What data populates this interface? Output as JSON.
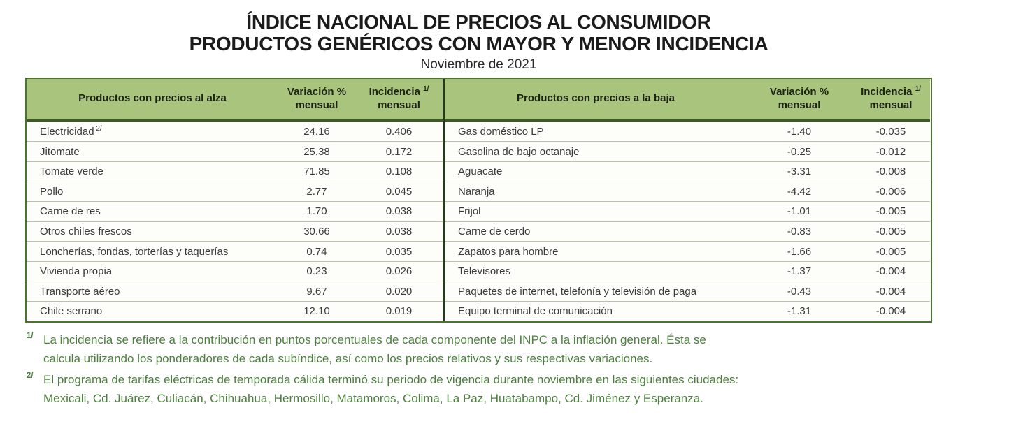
{
  "page": {
    "title_line1": "ÍNDICE NACIONAL DE PRECIOS AL CONSUMIDOR",
    "title_line2": "PRODUCTOS GENÉRICOS CON MAYOR Y MENOR INCIDENCIA",
    "subtitle": "Noviembre de 2021"
  },
  "colors": {
    "header_green": "#a9c47c",
    "border_dark_green": "#4a7233",
    "header_rule_green": "#3a5c24",
    "divider_green": "#27391d",
    "row_separator": "#b9c2aa",
    "footnote_green": "#4c7f3e",
    "body_text": "#3b3b3b"
  },
  "table": {
    "sections": [
      {
        "id": "alza",
        "header": {
          "product": "Productos con precios al alza",
          "variation_line1": "Variación %",
          "variation_line2": "mensual",
          "incidence_line1": "Incidencia",
          "incidence_sup": "1/",
          "incidence_line2": "mensual"
        },
        "rows": [
          {
            "product": "Electricidad",
            "product_sup": "2/",
            "variation": "24.16",
            "incidence": "0.406"
          },
          {
            "product": "Jitomate",
            "variation": "25.38",
            "incidence": "0.172"
          },
          {
            "product": "Tomate verde",
            "variation": "71.85",
            "incidence": "0.108"
          },
          {
            "product": "Pollo",
            "variation": "2.77",
            "incidence": "0.045"
          },
          {
            "product": "Carne de res",
            "variation": "1.70",
            "incidence": "0.038"
          },
          {
            "product": "Otros chiles frescos",
            "variation": "30.66",
            "incidence": "0.038"
          },
          {
            "product": "Loncherías, fondas, torterías y taquerías",
            "variation": "0.74",
            "incidence": "0.035"
          },
          {
            "product": "Vivienda propia",
            "variation": "0.23",
            "incidence": "0.026"
          },
          {
            "product": "Transporte aéreo",
            "variation": "9.67",
            "incidence": "0.020"
          },
          {
            "product": "Chile serrano",
            "variation": "12.10",
            "incidence": "0.019"
          }
        ]
      },
      {
        "id": "baja",
        "header": {
          "product": "Productos con precios a la baja",
          "variation_line1": "Variación %",
          "variation_line2": "mensual",
          "incidence_line1": "Incidencia",
          "incidence_sup": "1/",
          "incidence_line2": "mensual"
        },
        "rows": [
          {
            "product": "Gas doméstico LP",
            "variation": "-1.40",
            "incidence": "-0.035"
          },
          {
            "product": "Gasolina de bajo octanaje",
            "variation": "-0.25",
            "incidence": "-0.012"
          },
          {
            "product": "Aguacate",
            "variation": "-3.31",
            "incidence": "-0.008"
          },
          {
            "product": "Naranja",
            "variation": "-4.42",
            "incidence": "-0.006"
          },
          {
            "product": "Frijol",
            "variation": "-1.01",
            "incidence": "-0.005"
          },
          {
            "product": "Carne de cerdo",
            "variation": "-0.83",
            "incidence": "-0.005"
          },
          {
            "product": "Zapatos para hombre",
            "variation": "-1.66",
            "incidence": "-0.005"
          },
          {
            "product": "Televisores",
            "variation": "-1.37",
            "incidence": "-0.004"
          },
          {
            "product": "Paquetes de internet, telefonía y televisión de paga",
            "variation": "-0.43",
            "incidence": "-0.004"
          },
          {
            "product": "Equipo terminal de comunicación",
            "variation": "-1.31",
            "incidence": "-0.004"
          }
        ]
      }
    ]
  },
  "footnotes": [
    {
      "marker": "1/",
      "lines": [
        "La incidencia se refiere a la contribución en puntos porcentuales de cada componente del INPC a la inflación general. Ésta se",
        "calcula utilizando los ponderadores de cada subíndice, así como los precios relativos y sus respectivas variaciones."
      ]
    },
    {
      "marker": "2/",
      "lines": [
        "El programa de tarifas eléctricas de temporada cálida terminó su periodo de vigencia durante noviembre en las siguientes ciudades:",
        "Mexicali, Cd. Juárez, Culiacán, Chihuahua, Hermosillo, Matamoros, Colima, La Paz, Huatabampo, Cd. Jiménez y Esperanza."
      ]
    }
  ]
}
